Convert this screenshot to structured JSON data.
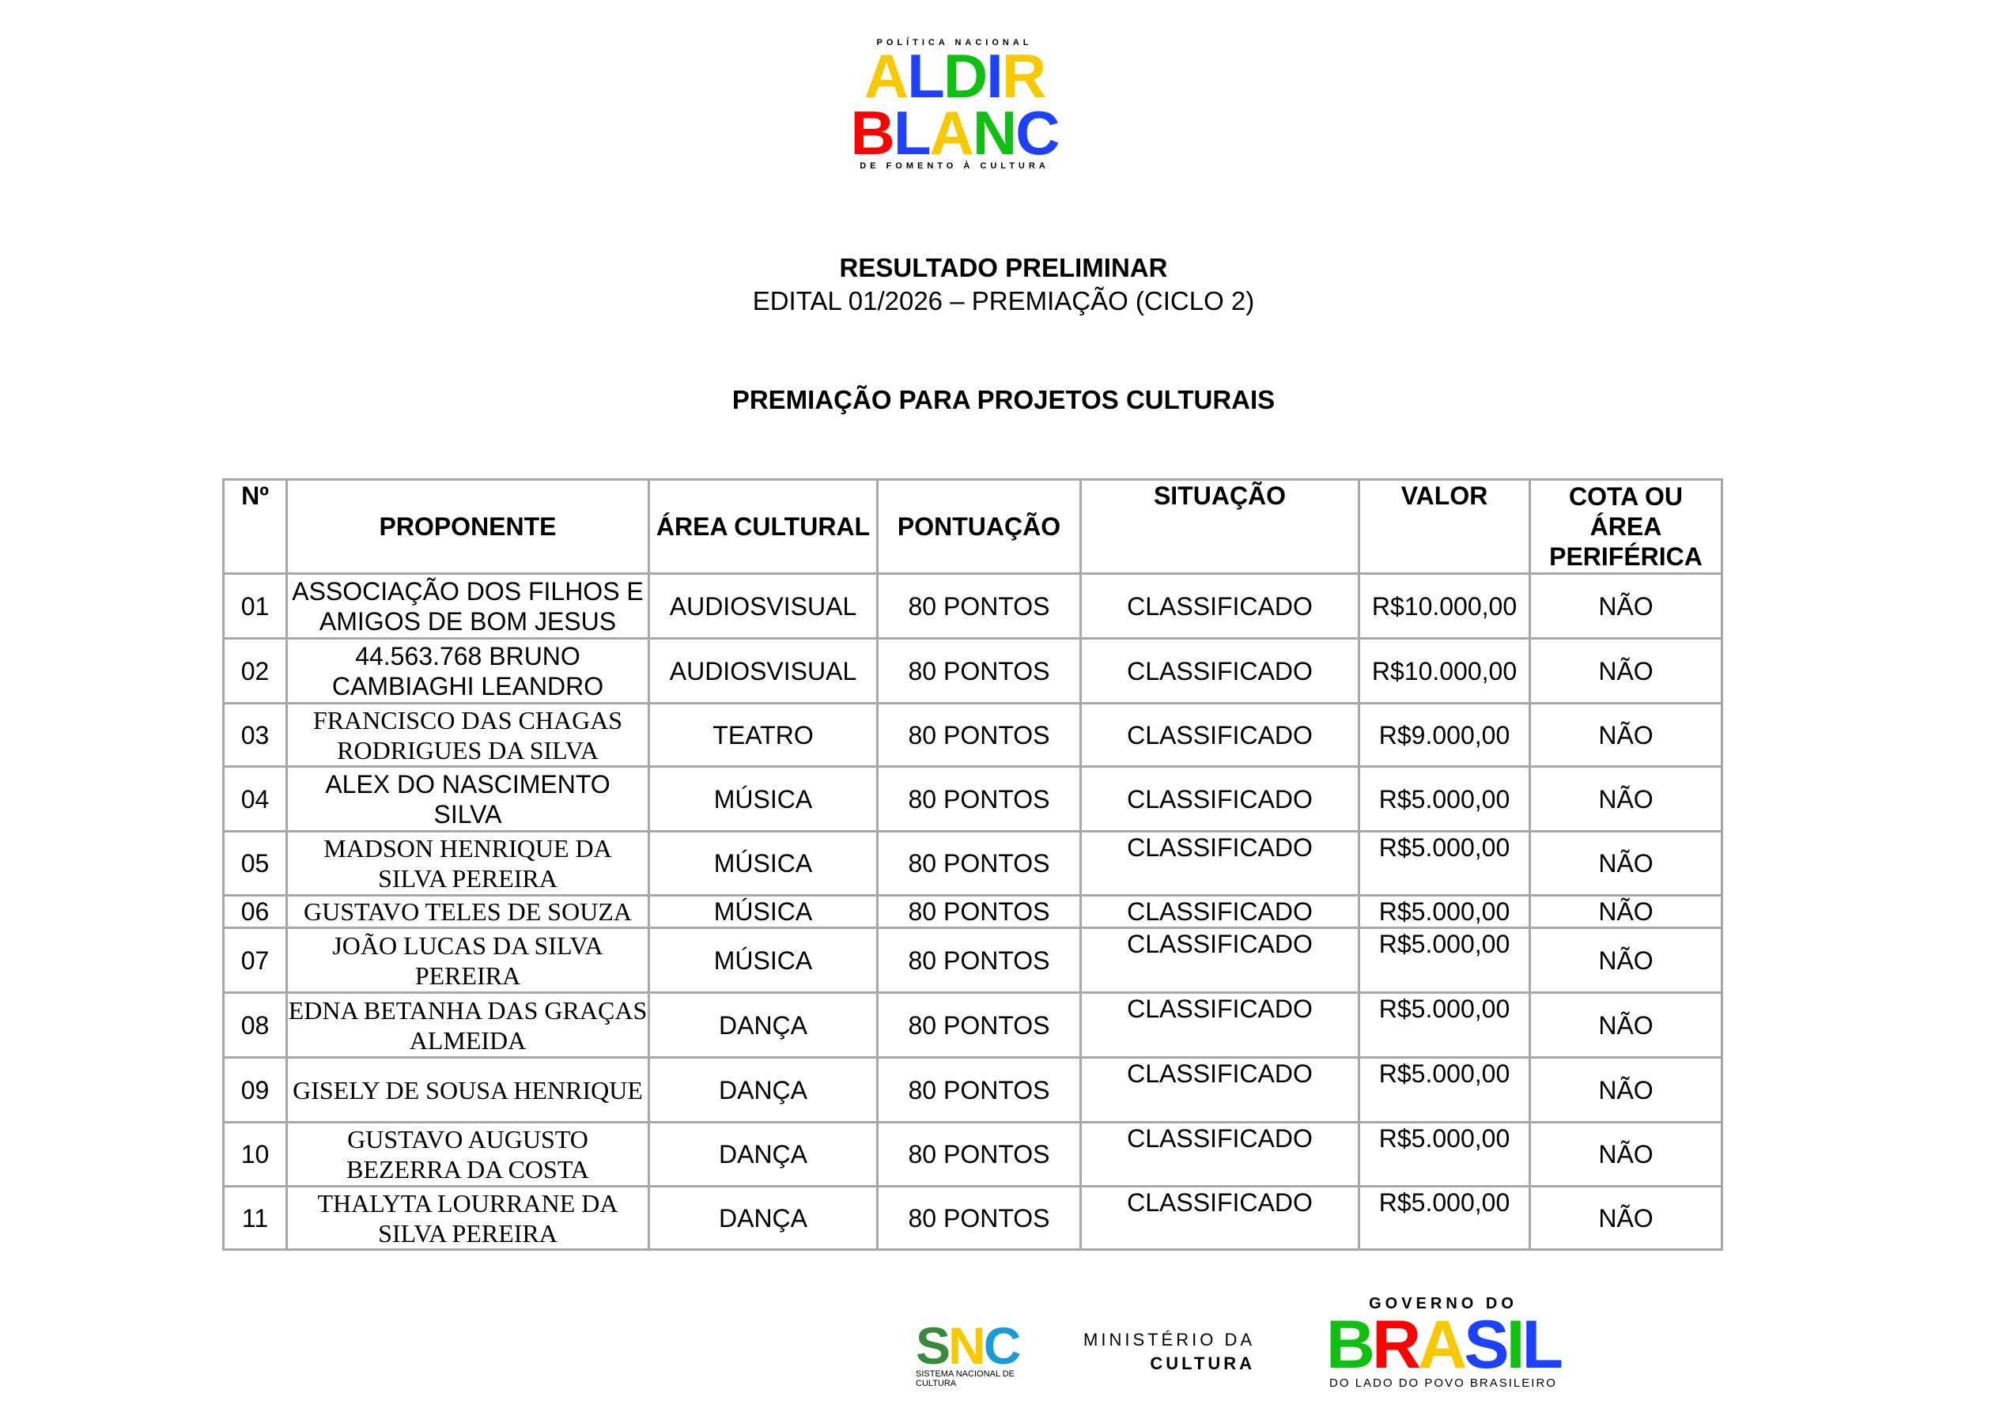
{
  "header_logo": {
    "top": "POLÍTICA NACIONAL",
    "line1": "ALDIR",
    "line2": "BLANC",
    "bottom": "DE FOMENTO À CULTURA"
  },
  "title": "RESULTADO PRELIMINAR",
  "subtitle": "EDITAL 01/2026 – PREMIAÇÃO (CICLO 2)",
  "section": "PREMIAÇÃO PARA PROJETOS CULTURAIS",
  "table": {
    "headers": [
      "Nº",
      "PROPONENTE",
      "ÁREA CULTURAL",
      "PONTUAÇÃO",
      "SITUAÇÃO",
      "VALOR",
      "COTA OU ÁREA PERIFÉRICA"
    ],
    "rows": [
      [
        "01",
        "ASSOCIAÇÃO DOS FILHOS E AMIGOS DE BOM JESUS",
        "AUDIOSVISUAL",
        "80 PONTOS",
        "CLASSIFICADO",
        "R$10.000,00",
        "NÃO"
      ],
      [
        "02",
        "44.563.768 BRUNO CAMBIAGHI LEANDRO",
        "AUDIOSVISUAL",
        "80 PONTOS",
        "CLASSIFICADO",
        "R$10.000,00",
        "NÃO"
      ],
      [
        "03",
        "FRANCISCO DAS CHAGAS RODRIGUES DA SILVA",
        "TEATRO",
        "80 PONTOS",
        "CLASSIFICADO",
        "R$9.000,00",
        "NÃO"
      ],
      [
        "04",
        "ALEX DO NASCIMENTO SILVA",
        "MÚSICA",
        "80 PONTOS",
        "CLASSIFICADO",
        "R$5.000,00",
        "NÃO"
      ],
      [
        "05",
        "MADSON HENRIQUE DA SILVA PEREIRA",
        "MÚSICA",
        "80 PONTOS",
        "CLASSIFICADO",
        "R$5.000,00",
        "NÃO"
      ],
      [
        "06",
        "GUSTAVO TELES DE SOUZA",
        "MÚSICA",
        "80 PONTOS",
        "CLASSIFICADO",
        "R$5.000,00",
        "NÃO"
      ],
      [
        "07",
        "JOÃO LUCAS DA SILVA PEREIRA",
        "MÚSICA",
        "80 PONTOS",
        "CLASSIFICADO",
        "R$5.000,00",
        "NÃO"
      ],
      [
        "08",
        "EDNA BETANHA DAS GRAÇAS ALMEIDA",
        "DANÇA",
        "80 PONTOS",
        "CLASSIFICADO",
        "R$5.000,00",
        "NÃO"
      ],
      [
        "09",
        "GISELY DE SOUSA HENRIQUE",
        "DANÇA",
        "80 PONTOS",
        "CLASSIFICADO",
        "R$5.000,00",
        "NÃO"
      ],
      [
        "10",
        "GUSTAVO AUGUSTO BEZERRA DA COSTA",
        "DANÇA",
        "80 PONTOS",
        "CLASSIFICADO",
        "R$5.000,00",
        "NÃO"
      ],
      [
        "11",
        "THALYTA LOURRANE DA SILVA PEREIRA",
        "DANÇA",
        "80 PONTOS",
        "CLASSIFICADO",
        "R$5.000,00",
        "NÃO"
      ]
    ]
  },
  "footer": {
    "snc": "SNC",
    "snc_caption": "SISTEMA NACIONAL DE CULTURA",
    "ministerio_1": "MINISTÉRIO DA",
    "ministerio_2": "CULTURA",
    "gov_top": "GOVERNO DO",
    "gov_brasil": "BRASIL",
    "gov_tagline": "DO LADO DO POVO BRASILEIRO"
  },
  "colors": {
    "yellow": "#f9c900",
    "blue": "#1e40ff",
    "green": "#10c010",
    "red": "#ff0000",
    "snc_green": "#3b8a3b",
    "snc_blue": "#1a9ad6"
  }
}
